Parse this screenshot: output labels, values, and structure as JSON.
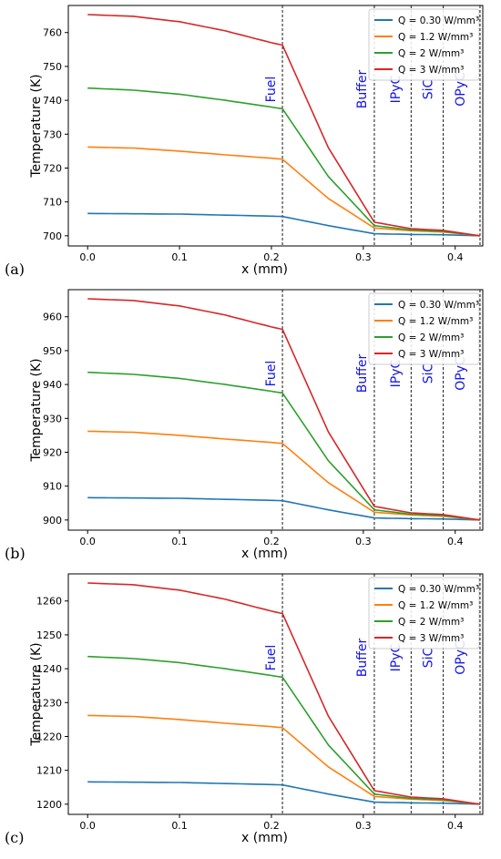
{
  "figure": {
    "panels": [
      {
        "label": "(a)"
      },
      {
        "label": "(b)"
      },
      {
        "label": "(c)"
      }
    ]
  },
  "chart_data": [
    {
      "type": "line",
      "panel": "(a)",
      "xlabel": "x (mm)",
      "ylabel": "Temperature (K)",
      "xlim": [
        -0.021,
        0.43
      ],
      "ylim": [
        697,
        768
      ],
      "xticks": [
        0.0,
        0.1,
        0.2,
        0.3,
        0.4
      ],
      "xtick_labels": [
        "0.0",
        "0.1",
        "0.2",
        "0.3",
        "0.4"
      ],
      "yticks": [
        700,
        710,
        720,
        730,
        740,
        750,
        760
      ],
      "ytick_labels": [
        "700",
        "710",
        "720",
        "730",
        "740",
        "750",
        "760"
      ],
      "grid": false,
      "legend_position": "top-right",
      "boundaries": [
        0.212,
        0.312,
        0.352,
        0.387,
        0.427
      ],
      "regions": [
        {
          "label": "Fuel",
          "x": 0.2
        },
        {
          "label": "Buffer",
          "x": 0.299
        },
        {
          "label": "IPyC",
          "x": 0.336
        },
        {
          "label": "SiC",
          "x": 0.371
        },
        {
          "label": "OPyC",
          "x": 0.406
        }
      ],
      "series": [
        {
          "name": "Q = 0.30 W/mm³",
          "color": "#1f77b4",
          "x": [
            0.0,
            0.05,
            0.1,
            0.15,
            0.2,
            0.212,
            0.262,
            0.312,
            0.352,
            0.387,
            0.427
          ],
          "y": [
            706.6,
            706.5,
            706.4,
            706.1,
            705.8,
            705.7,
            703.0,
            700.6,
            700.4,
            700.3,
            700.0
          ]
        },
        {
          "name": "Q = 1.2 W/mm³",
          "color": "#ff7f0e",
          "x": [
            0.0,
            0.05,
            0.1,
            0.15,
            0.2,
            0.212,
            0.262,
            0.312,
            0.352,
            0.387,
            0.427
          ],
          "y": [
            726.2,
            725.9,
            725.0,
            723.9,
            722.9,
            722.6,
            711.0,
            702.3,
            701.5,
            701.1,
            700.0
          ]
        },
        {
          "name": "Q = 2 W/mm³",
          "color": "#2ca02c",
          "x": [
            0.0,
            0.05,
            0.1,
            0.15,
            0.2,
            0.212,
            0.262,
            0.312,
            0.352,
            0.387,
            0.427
          ],
          "y": [
            743.6,
            743.0,
            741.8,
            740.0,
            738.0,
            737.5,
            717.5,
            703.0,
            701.7,
            701.3,
            700.0
          ]
        },
        {
          "name": "Q = 3 W/mm³",
          "color": "#d62728",
          "x": [
            0.0,
            0.05,
            0.1,
            0.15,
            0.2,
            0.212,
            0.262,
            0.312,
            0.352,
            0.387,
            0.427
          ],
          "y": [
            765.3,
            764.8,
            763.2,
            760.5,
            757.0,
            756.3,
            726.0,
            704.0,
            702.1,
            701.6,
            700.0
          ]
        }
      ]
    },
    {
      "type": "line",
      "panel": "(b)",
      "xlabel": "x (mm)",
      "ylabel": "Temperature (K)",
      "xlim": [
        -0.021,
        0.43
      ],
      "ylim": [
        897,
        968
      ],
      "xticks": [
        0.0,
        0.1,
        0.2,
        0.3,
        0.4
      ],
      "xtick_labels": [
        "0.0",
        "0.1",
        "0.2",
        "0.3",
        "0.4"
      ],
      "yticks": [
        900,
        910,
        920,
        930,
        940,
        950,
        960
      ],
      "ytick_labels": [
        "900",
        "910",
        "920",
        "930",
        "940",
        "950",
        "960"
      ],
      "grid": false,
      "legend_position": "top-right",
      "boundaries": [
        0.212,
        0.312,
        0.352,
        0.387,
        0.427
      ],
      "regions": [
        {
          "label": "Fuel",
          "x": 0.2
        },
        {
          "label": "Buffer",
          "x": 0.299
        },
        {
          "label": "IPyC",
          "x": 0.336
        },
        {
          "label": "SiC",
          "x": 0.371
        },
        {
          "label": "OPyC",
          "x": 0.406
        }
      ],
      "series": [
        {
          "name": "Q = 0.30 W/mm³",
          "color": "#1f77b4",
          "x": [
            0.0,
            0.05,
            0.1,
            0.15,
            0.2,
            0.212,
            0.262,
            0.312,
            0.352,
            0.387,
            0.427
          ],
          "y": [
            906.6,
            906.5,
            906.4,
            906.1,
            905.8,
            905.7,
            903.0,
            900.6,
            900.4,
            900.3,
            900.0
          ]
        },
        {
          "name": "Q = 1.2 W/mm³",
          "color": "#ff7f0e",
          "x": [
            0.0,
            0.05,
            0.1,
            0.15,
            0.2,
            0.212,
            0.262,
            0.312,
            0.352,
            0.387,
            0.427
          ],
          "y": [
            926.2,
            925.9,
            925.0,
            923.9,
            922.9,
            922.6,
            911.0,
            902.3,
            901.5,
            901.1,
            900.0
          ]
        },
        {
          "name": "Q = 2 W/mm³",
          "color": "#2ca02c",
          "x": [
            0.0,
            0.05,
            0.1,
            0.15,
            0.2,
            0.212,
            0.262,
            0.312,
            0.352,
            0.387,
            0.427
          ],
          "y": [
            943.6,
            943.0,
            941.8,
            940.0,
            938.0,
            937.5,
            917.5,
            903.0,
            901.7,
            901.3,
            900.0
          ]
        },
        {
          "name": "Q = 3 W/mm³",
          "color": "#d62728",
          "x": [
            0.0,
            0.05,
            0.1,
            0.15,
            0.2,
            0.212,
            0.262,
            0.312,
            0.352,
            0.387,
            0.427
          ],
          "y": [
            965.3,
            964.8,
            963.2,
            960.5,
            957.0,
            956.3,
            926.0,
            904.0,
            902.1,
            901.6,
            900.0
          ]
        }
      ]
    },
    {
      "type": "line",
      "panel": "(c)",
      "xlabel": "x (mm)",
      "ylabel": "Temperature (K)",
      "xlim": [
        -0.021,
        0.43
      ],
      "ylim": [
        1197,
        1268
      ],
      "xticks": [
        0.0,
        0.1,
        0.2,
        0.3,
        0.4
      ],
      "xtick_labels": [
        "0.0",
        "0.1",
        "0.2",
        "0.3",
        "0.4"
      ],
      "yticks": [
        1200,
        1210,
        1220,
        1230,
        1240,
        1250,
        1260
      ],
      "ytick_labels": [
        "1200",
        "1210",
        "1220",
        "1230",
        "1240",
        "1250",
        "1260"
      ],
      "grid": false,
      "legend_position": "top-right",
      "boundaries": [
        0.212,
        0.312,
        0.352,
        0.387,
        0.427
      ],
      "regions": [
        {
          "label": "Fuel",
          "x": 0.2
        },
        {
          "label": "Buffer",
          "x": 0.299
        },
        {
          "label": "IPyC",
          "x": 0.336
        },
        {
          "label": "SiC",
          "x": 0.371
        },
        {
          "label": "OPyC",
          "x": 0.406
        }
      ],
      "series": [
        {
          "name": "Q = 0.30 W/mm³",
          "color": "#1f77b4",
          "x": [
            0.0,
            0.05,
            0.1,
            0.15,
            0.2,
            0.212,
            0.262,
            0.312,
            0.352,
            0.387,
            0.427
          ],
          "y": [
            1206.6,
            1206.5,
            1206.4,
            1206.1,
            1205.8,
            1205.7,
            1203.0,
            1200.6,
            1200.4,
            1200.3,
            1200.0
          ]
        },
        {
          "name": "Q = 1.2 W/mm³",
          "color": "#ff7f0e",
          "x": [
            0.0,
            0.05,
            0.1,
            0.15,
            0.2,
            0.212,
            0.262,
            0.312,
            0.352,
            0.387,
            0.427
          ],
          "y": [
            1226.2,
            1225.9,
            1225.0,
            1223.9,
            1222.9,
            1222.6,
            1211.0,
            1202.3,
            1201.5,
            1201.1,
            1200.0
          ]
        },
        {
          "name": "Q = 2 W/mm³",
          "color": "#2ca02c",
          "x": [
            0.0,
            0.05,
            0.1,
            0.15,
            0.2,
            0.212,
            0.262,
            0.312,
            0.352,
            0.387,
            0.427
          ],
          "y": [
            1243.6,
            1243.0,
            1241.8,
            1240.0,
            1238.0,
            1237.5,
            1217.5,
            1203.0,
            1201.7,
            1201.3,
            1200.0
          ]
        },
        {
          "name": "Q = 3 W/mm³",
          "color": "#d62728",
          "x": [
            0.0,
            0.05,
            0.1,
            0.15,
            0.2,
            0.212,
            0.262,
            0.312,
            0.352,
            0.387,
            0.427
          ],
          "y": [
            1265.3,
            1264.8,
            1263.2,
            1260.5,
            1257.0,
            1256.3,
            1226.0,
            1204.0,
            1202.1,
            1201.6,
            1200.0
          ]
        }
      ]
    }
  ]
}
